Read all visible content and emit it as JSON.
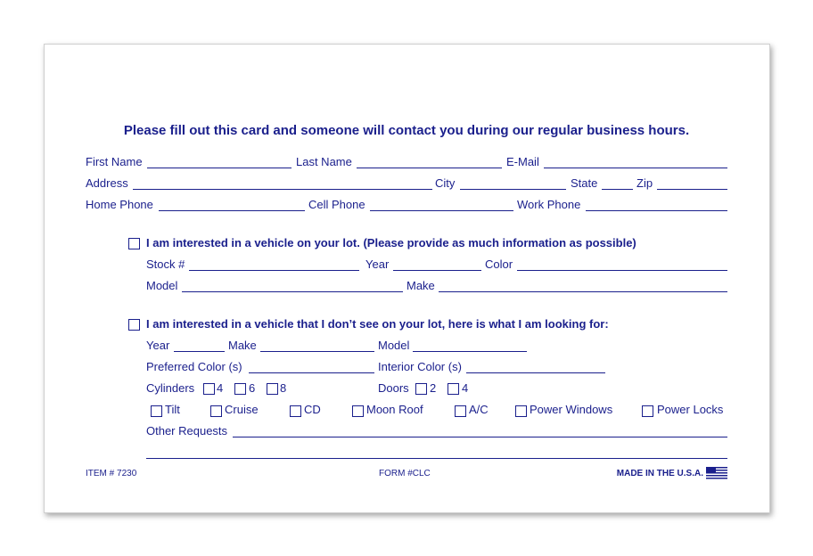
{
  "title": "Please fill out this card and someone will contact you during our regular business hours.",
  "contact": {
    "first_name": "First Name",
    "last_name": "Last Name",
    "email": "E-Mail",
    "address": "Address",
    "city": "City",
    "state": "State",
    "zip": "Zip",
    "home_phone": "Home Phone",
    "cell_phone": "Cell Phone",
    "work_phone": "Work Phone"
  },
  "section1": {
    "heading": "I am interested in a vehicle on your lot. (Please provide as much information as possible)",
    "stock": "Stock #",
    "year": "Year",
    "color": "Color",
    "model": "Model",
    "make": "Make"
  },
  "section2": {
    "heading": "I am interested in a vehicle that I don’t see on your lot, here is what I am looking for:",
    "year": "Year",
    "make": "Make",
    "model": "Model",
    "preferred_color": "Preferred Color (s)",
    "interior_color": "Interior Color (s)",
    "cylinders": "Cylinders",
    "cyl_options": [
      "4",
      "6",
      "8"
    ],
    "doors": "Doors",
    "door_options": [
      "2",
      "4"
    ],
    "features": [
      "Tilt",
      "Cruise",
      "CD",
      "Moon Roof",
      "A/C",
      "Power Windows",
      "Power Locks"
    ],
    "other_requests": "Other Requests"
  },
  "footer": {
    "item": "ITEM # 7230",
    "form": "FORM #CLC",
    "made_in": "MADE IN THE U.S.A.",
    "flag_icon": "us-flag-icon"
  }
}
